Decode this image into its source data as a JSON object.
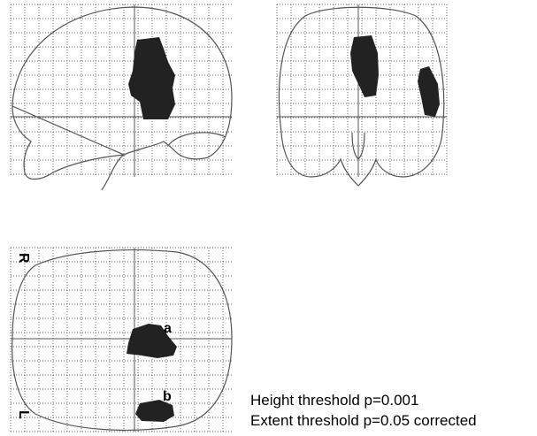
{
  "views": {
    "orientation_right": "R",
    "orientation_left": "L",
    "cluster_a": "a",
    "cluster_b": "b"
  },
  "caption": {
    "height_threshold": "Height threshold p=0.001",
    "extent_threshold": "Extent threshold p=0.05 corrected"
  }
}
